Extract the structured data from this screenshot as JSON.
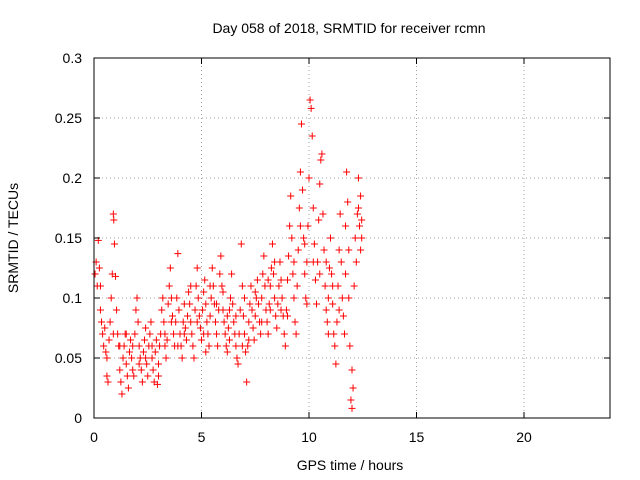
{
  "chart_data": {
    "type": "scatter",
    "title": "Day 058 of 2018, SRMTID for receiver rcmn",
    "xlabel": "GPS time / hours",
    "ylabel": "SRMTID / TECUs",
    "xlim": [
      0,
      24
    ],
    "ylim": [
      0,
      0.3
    ],
    "xticks": [
      0,
      5,
      10,
      15,
      20
    ],
    "yticks": [
      0,
      0.05,
      0.1,
      0.15,
      0.2,
      0.25,
      0.3
    ],
    "xtick_labels": [
      "0",
      "5",
      "10",
      "15",
      "20"
    ],
    "ytick_labels": [
      "0",
      "0.05",
      "0.1",
      "0.15",
      "0.2",
      "0.25",
      "0.3"
    ],
    "grid": true,
    "marker": "+",
    "series": [
      {
        "color": "#ff0000",
        "points": [
          [
            0.05,
            0.12
          ],
          [
            0.1,
            0.13
          ],
          [
            0.15,
            0.11
          ],
          [
            0.2,
            0.148
          ],
          [
            0.25,
            0.125
          ],
          [
            0.3,
            0.09
          ],
          [
            0.35,
            0.08
          ],
          [
            0.4,
            0.07
          ],
          [
            0.45,
            0.06
          ],
          [
            0.5,
            0.075
          ],
          [
            0.55,
            0.055
          ],
          [
            0.6,
            0.035
          ],
          [
            0.65,
            0.03
          ],
          [
            0.7,
            0.065
          ],
          [
            0.75,
            0.08
          ],
          [
            0.8,
            0.1
          ],
          [
            0.85,
            0.12
          ],
          [
            0.9,
            0.17
          ],
          [
            0.92,
            0.165
          ],
          [
            0.95,
            0.145
          ],
          [
            1.0,
            0.118
          ],
          [
            1.05,
            0.09
          ],
          [
            1.1,
            0.07
          ],
          [
            1.15,
            0.06
          ],
          [
            1.2,
            0.04
          ],
          [
            1.25,
            0.03
          ],
          [
            1.3,
            0.02
          ],
          [
            1.35,
            0.05
          ],
          [
            1.4,
            0.06
          ],
          [
            1.45,
            0.07
          ],
          [
            1.5,
            0.045
          ],
          [
            1.55,
            0.035
          ],
          [
            1.6,
            0.025
          ],
          [
            1.65,
            0.055
          ],
          [
            1.7,
            0.065
          ],
          [
            1.75,
            0.05
          ],
          [
            1.8,
            0.04
          ],
          [
            1.85,
            0.035
          ],
          [
            1.9,
            0.07
          ],
          [
            1.95,
            0.09
          ],
          [
            2.0,
            0.1
          ],
          [
            2.05,
            0.08
          ],
          [
            2.1,
            0.06
          ],
          [
            2.15,
            0.05
          ],
          [
            2.2,
            0.04
          ],
          [
            2.25,
            0.03
          ],
          [
            2.3,
            0.055
          ],
          [
            2.35,
            0.065
          ],
          [
            2.4,
            0.075
          ],
          [
            2.45,
            0.045
          ],
          [
            2.5,
            0.035
          ],
          [
            2.55,
            0.06
          ],
          [
            2.6,
            0.07
          ],
          [
            2.65,
            0.08
          ],
          [
            2.7,
            0.05
          ],
          [
            2.75,
            0.04
          ],
          [
            2.8,
            0.03
          ],
          [
            2.85,
            0.055
          ],
          [
            2.9,
            0.065
          ],
          [
            2.95,
            0.028
          ],
          [
            3.0,
            0.045
          ],
          [
            3.05,
            0.06
          ],
          [
            3.1,
            0.07
          ],
          [
            3.15,
            0.09
          ],
          [
            3.2,
            0.1
          ],
          [
            3.25,
            0.08
          ],
          [
            3.3,
            0.06
          ],
          [
            3.35,
            0.05
          ],
          [
            3.4,
            0.065
          ],
          [
            3.45,
            0.095
          ],
          [
            3.5,
            0.11
          ],
          [
            3.55,
            0.125
          ],
          [
            3.6,
            0.1
          ],
          [
            3.65,
            0.085
          ],
          [
            3.7,
            0.07
          ],
          [
            3.75,
            0.06
          ],
          [
            3.8,
            0.08
          ],
          [
            3.85,
            0.1
          ],
          [
            3.9,
            0.137
          ],
          [
            3.95,
            0.09
          ],
          [
            4.0,
            0.07
          ],
          [
            4.05,
            0.06
          ],
          [
            4.1,
            0.05
          ],
          [
            4.15,
            0.08
          ],
          [
            4.2,
            0.095
          ],
          [
            4.25,
            0.075
          ],
          [
            4.3,
            0.065
          ],
          [
            4.35,
            0.085
          ],
          [
            4.4,
            0.105
          ],
          [
            4.45,
            0.095
          ],
          [
            4.5,
            0.08
          ],
          [
            4.55,
            0.07
          ],
          [
            4.6,
            0.06
          ],
          [
            4.65,
            0.05
          ],
          [
            4.7,
            0.09
          ],
          [
            4.75,
            0.11
          ],
          [
            4.8,
            0.125
          ],
          [
            4.85,
            0.1
          ],
          [
            4.9,
            0.085
          ],
          [
            4.95,
            0.075
          ],
          [
            5.0,
            0.065
          ],
          [
            5.05,
            0.09
          ],
          [
            5.1,
            0.105
          ],
          [
            5.15,
            0.115
          ],
          [
            5.2,
            0.095
          ],
          [
            5.25,
            0.08
          ],
          [
            5.3,
            0.07
          ],
          [
            5.35,
            0.06
          ],
          [
            5.4,
            0.085
          ],
          [
            5.45,
            0.1
          ],
          [
            5.5,
            0.125
          ],
          [
            5.55,
            0.11
          ],
          [
            5.6,
            0.095
          ],
          [
            5.65,
            0.08
          ],
          [
            5.7,
            0.07
          ],
          [
            5.75,
            0.06
          ],
          [
            5.8,
            0.09
          ],
          [
            5.85,
            0.12
          ],
          [
            5.9,
            0.135
          ],
          [
            5.95,
            0.11
          ],
          [
            6.0,
            0.09
          ],
          [
            6.05,
            0.08
          ],
          [
            6.1,
            0.07
          ],
          [
            6.15,
            0.06
          ],
          [
            6.2,
            0.055
          ],
          [
            6.25,
            0.075
          ],
          [
            6.3,
            0.09
          ],
          [
            6.35,
            0.1
          ],
          [
            6.4,
            0.12
          ],
          [
            6.45,
            0.095
          ],
          [
            6.5,
            0.08
          ],
          [
            6.55,
            0.07
          ],
          [
            6.6,
            0.06
          ],
          [
            6.65,
            0.05
          ],
          [
            6.7,
            0.045
          ],
          [
            6.75,
            0.07
          ],
          [
            6.8,
            0.09
          ],
          [
            6.85,
            0.145
          ],
          [
            6.9,
            0.11
          ],
          [
            6.95,
            0.085
          ],
          [
            7.0,
            0.07
          ],
          [
            7.05,
            0.055
          ],
          [
            7.1,
            0.03
          ],
          [
            7.15,
            0.06
          ],
          [
            7.2,
            0.08
          ],
          [
            7.25,
            0.095
          ],
          [
            7.3,
            0.11
          ],
          [
            7.35,
            0.09
          ],
          [
            7.4,
            0.075
          ],
          [
            7.45,
            0.065
          ],
          [
            7.5,
            0.085
          ],
          [
            7.55,
            0.1
          ],
          [
            7.6,
            0.115
          ],
          [
            7.65,
            0.095
          ],
          [
            7.7,
            0.08
          ],
          [
            7.75,
            0.07
          ],
          [
            7.8,
            0.1
          ],
          [
            7.85,
            0.12
          ],
          [
            7.9,
            0.135
          ],
          [
            7.95,
            0.11
          ],
          [
            8.0,
            0.09
          ],
          [
            8.05,
            0.08
          ],
          [
            8.1,
            0.07
          ],
          [
            8.15,
            0.095
          ],
          [
            8.2,
            0.11
          ],
          [
            8.25,
            0.125
          ],
          [
            8.3,
            0.145
          ],
          [
            8.35,
            0.12
          ],
          [
            8.4,
            0.1
          ],
          [
            8.45,
            0.085
          ],
          [
            8.5,
            0.075
          ],
          [
            8.55,
            0.095
          ],
          [
            8.6,
            0.11
          ],
          [
            8.65,
            0.13
          ],
          [
            8.7,
            0.115
          ],
          [
            8.75,
            0.1
          ],
          [
            8.8,
            0.085
          ],
          [
            8.85,
            0.07
          ],
          [
            8.9,
            0.06
          ],
          [
            8.95,
            0.09
          ],
          [
            9.0,
            0.115
          ],
          [
            9.05,
            0.135
          ],
          [
            9.1,
            0.16
          ],
          [
            9.15,
            0.185
          ],
          [
            9.2,
            0.15
          ],
          [
            9.25,
            0.12
          ],
          [
            9.3,
            0.1
          ],
          [
            9.35,
            0.08
          ],
          [
            9.4,
            0.07
          ],
          [
            9.45,
            0.11
          ],
          [
            9.5,
            0.14
          ],
          [
            9.55,
            0.175
          ],
          [
            9.6,
            0.205
          ],
          [
            9.65,
            0.245
          ],
          [
            9.7,
            0.19
          ],
          [
            9.75,
            0.15
          ],
          [
            9.8,
            0.12
          ],
          [
            9.85,
            0.1
          ],
          [
            9.9,
            0.13
          ],
          [
            9.95,
            0.16
          ],
          [
            10.0,
            0.2
          ],
          [
            10.05,
            0.265
          ],
          [
            10.1,
            0.258
          ],
          [
            10.15,
            0.235
          ],
          [
            10.2,
            0.175
          ],
          [
            10.25,
            0.145
          ],
          [
            10.3,
            0.115
          ],
          [
            10.35,
            0.095
          ],
          [
            10.4,
            0.13
          ],
          [
            10.45,
            0.165
          ],
          [
            10.5,
            0.195
          ],
          [
            10.55,
            0.215
          ],
          [
            10.6,
            0.22
          ],
          [
            10.65,
            0.17
          ],
          [
            10.7,
            0.14
          ],
          [
            10.75,
            0.11
          ],
          [
            10.8,
            0.09
          ],
          [
            10.85,
            0.08
          ],
          [
            10.9,
            0.1
          ],
          [
            10.95,
            0.125
          ],
          [
            11.0,
            0.15
          ],
          [
            11.05,
            0.12
          ],
          [
            11.1,
            0.095
          ],
          [
            11.15,
            0.07
          ],
          [
            11.2,
            0.06
          ],
          [
            11.25,
            0.045
          ],
          [
            11.3,
            0.08
          ],
          [
            11.35,
            0.11
          ],
          [
            11.4,
            0.14
          ],
          [
            11.45,
            0.17
          ],
          [
            11.5,
            0.13
          ],
          [
            11.55,
            0.1
          ],
          [
            11.6,
            0.085
          ],
          [
            11.65,
            0.07
          ],
          [
            11.7,
            0.16
          ],
          [
            11.75,
            0.205
          ],
          [
            11.8,
            0.18
          ],
          [
            11.85,
            0.14
          ],
          [
            11.9,
            0.06
          ],
          [
            11.95,
            0.015
          ],
          [
            12.0,
            0.008
          ],
          [
            12.05,
            0.025
          ],
          [
            12.1,
            0.11
          ],
          [
            12.15,
            0.15
          ],
          [
            12.2,
            0.13
          ],
          [
            12.25,
            0.17
          ],
          [
            12.3,
            0.2
          ],
          [
            12.35,
            0.16
          ],
          [
            12.4,
            0.14
          ],
          [
            12.45,
            0.15
          ],
          [
            0.3,
            0.11
          ],
          [
            0.6,
            0.05
          ],
          [
            0.9,
            0.07
          ],
          [
            1.2,
            0.06
          ],
          [
            1.5,
            0.07
          ],
          [
            1.8,
            0.06
          ],
          [
            2.1,
            0.045
          ],
          [
            2.4,
            0.05
          ],
          [
            2.7,
            0.06
          ],
          [
            3.0,
            0.035
          ],
          [
            3.3,
            0.07
          ],
          [
            3.6,
            0.08
          ],
          [
            3.9,
            0.06
          ],
          [
            4.2,
            0.07
          ],
          [
            4.5,
            0.11
          ],
          [
            4.8,
            0.08
          ],
          [
            5.1,
            0.07
          ],
          [
            5.4,
            0.11
          ],
          [
            5.7,
            0.095
          ],
          [
            6.0,
            0.105
          ],
          [
            6.3,
            0.065
          ],
          [
            6.6,
            0.085
          ],
          [
            6.9,
            0.06
          ],
          [
            7.2,
            0.065
          ],
          [
            7.5,
            0.105
          ],
          [
            7.8,
            0.08
          ],
          [
            8.1,
            0.115
          ],
          [
            8.4,
            0.13
          ],
          [
            8.7,
            0.09
          ],
          [
            9.0,
            0.085
          ],
          [
            9.3,
            0.13
          ],
          [
            9.6,
            0.16
          ],
          [
            9.9,
            0.095
          ],
          [
            10.2,
            0.13
          ],
          [
            10.5,
            0.12
          ],
          [
            10.8,
            0.13
          ],
          [
            11.1,
            0.11
          ],
          [
            11.4,
            0.09
          ],
          [
            11.7,
            0.12
          ],
          [
            12.0,
            0.04
          ],
          [
            12.3,
            0.175
          ],
          [
            12.4,
            0.185
          ],
          [
            12.45,
            0.165
          ],
          [
            11.85,
            0.1
          ],
          [
            10.9,
            0.07
          ],
          [
            9.8,
            0.145
          ],
          [
            8.2,
            0.09
          ],
          [
            7.0,
            0.1
          ],
          [
            6.2,
            0.085
          ],
          [
            5.2,
            0.055
          ]
        ]
      }
    ]
  }
}
